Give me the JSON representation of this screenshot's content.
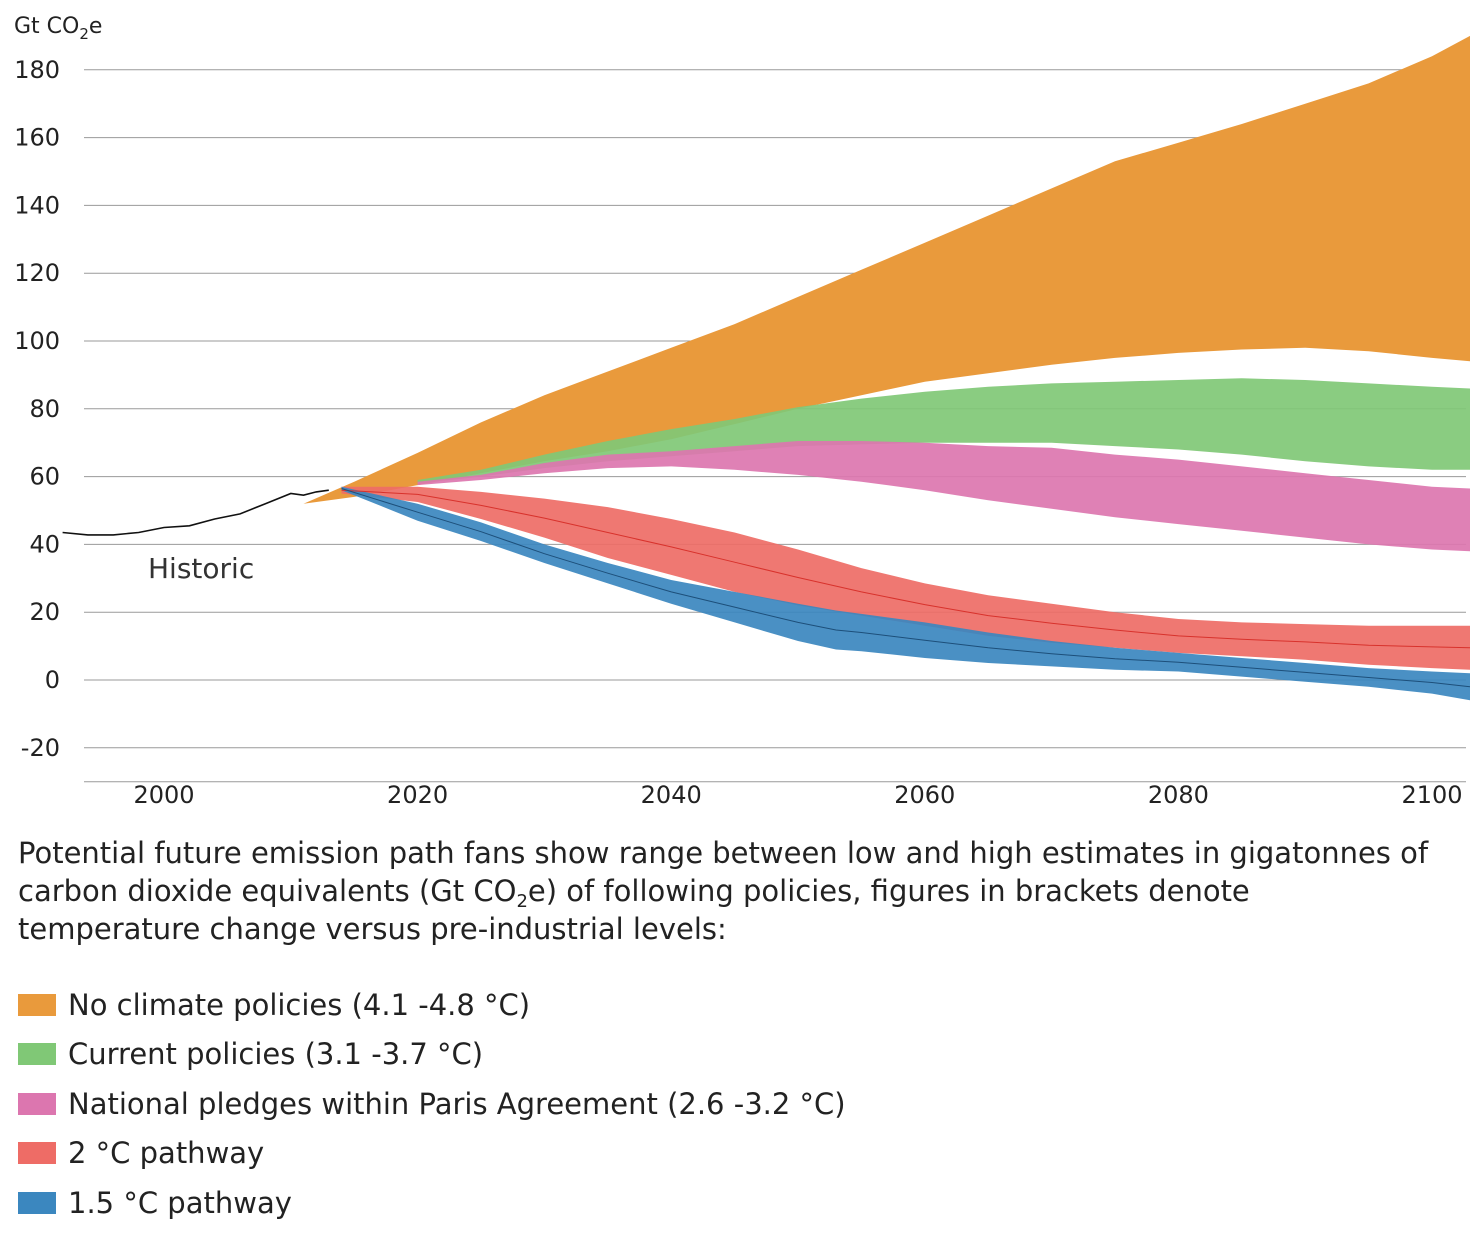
{
  "chart_data": {
    "type": "area",
    "title": "",
    "unit_label": {
      "pre": "Gt CO",
      "sub": "2",
      "post": "e"
    },
    "xlim": [
      1992,
      2103
    ],
    "ylim": [
      -20,
      190
    ],
    "x_ticks": [
      2000,
      2020,
      2040,
      2060,
      2080,
      2100
    ],
    "y_ticks": [
      -20,
      0,
      20,
      40,
      60,
      80,
      100,
      120,
      140,
      160,
      180
    ],
    "grid": true,
    "annotation": "Historic",
    "historic": {
      "name": "Historic",
      "x": [
        1992,
        1994,
        1996,
        1998,
        2000,
        2002,
        2004,
        2006,
        2008,
        2010,
        2011,
        2012,
        2013
      ],
      "y": [
        43.5,
        42.8,
        42.8,
        43.5,
        45,
        45.5,
        47.5,
        49,
        52,
        55,
        54.5,
        55.5,
        56
      ]
    },
    "series": [
      {
        "name": "No climate policies (4.1 -4.8 °C)",
        "color": "#E99A3C",
        "x": [
          2011,
          2015,
          2020,
          2025,
          2030,
          2035,
          2040,
          2045,
          2050,
          2055,
          2060,
          2065,
          2070,
          2075,
          2080,
          2085,
          2090,
          2095,
          2100,
          2103
        ],
        "high": [
          52,
          58.5,
          67,
          76,
          84,
          91,
          98,
          105,
          113,
          121,
          129,
          137,
          145,
          153,
          158.5,
          164,
          170,
          176,
          184,
          190
        ],
        "low": [
          52,
          54,
          57.5,
          61,
          64.5,
          67.5,
          71,
          75.5,
          80,
          84,
          88,
          90.5,
          93,
          95,
          96.5,
          97.5,
          98,
          97,
          95,
          94
        ]
      },
      {
        "name": "Current policies (3.1 -3.7 °C)",
        "color": "#80C876",
        "x": [
          2020,
          2025,
          2030,
          2035,
          2040,
          2045,
          2050,
          2055,
          2060,
          2065,
          2070,
          2075,
          2080,
          2085,
          2090,
          2095,
          2100,
          2103
        ],
        "high": [
          59,
          62,
          66.5,
          70.5,
          74,
          77,
          80.5,
          83,
          85,
          86.5,
          87.5,
          88,
          88.5,
          89,
          88.5,
          87.5,
          86.5,
          86
        ],
        "low": [
          58,
          60,
          62.5,
          64.5,
          66,
          67.5,
          69,
          69.5,
          70,
          70,
          70,
          69,
          68,
          66.5,
          64.5,
          63,
          62,
          62
        ]
      },
      {
        "name": "National pledges within Paris Agreement (2.6 -3.2 °C)",
        "color": "#DC76AF",
        "x": [
          2020,
          2025,
          2030,
          2035,
          2040,
          2045,
          2050,
          2055,
          2060,
          2065,
          2070,
          2075,
          2080,
          2085,
          2090,
          2095,
          2100,
          2103
        ],
        "high": [
          58.5,
          60.5,
          64,
          66.5,
          67.5,
          69,
          70.5,
          70.5,
          70,
          69,
          68.5,
          66.5,
          65,
          63,
          61,
          59,
          57,
          56.5
        ],
        "low": [
          57.5,
          59,
          61,
          62.5,
          63,
          62,
          60.5,
          58.5,
          56,
          53,
          50.5,
          48,
          46,
          44,
          42,
          40,
          38.5,
          38
        ]
      },
      {
        "name": "2 °C pathway",
        "color": "#EE6C66",
        "x": [
          2014,
          2020,
          2025,
          2030,
          2035,
          2040,
          2045,
          2050,
          2055,
          2060,
          2065,
          2070,
          2075,
          2080,
          2085,
          2090,
          2095,
          2100,
          2103
        ],
        "high": [
          57,
          57,
          55.5,
          53.5,
          51,
          47.5,
          43.5,
          38.5,
          33,
          28.5,
          25,
          22.5,
          20,
          18,
          17,
          16.5,
          16,
          16,
          16
        ],
        "low": [
          55,
          52.5,
          47.5,
          42,
          36,
          31,
          26,
          22,
          19,
          16,
          13,
          11,
          9.5,
          8,
          7,
          6,
          4.5,
          3.5,
          3
        ]
      },
      {
        "name": "1.5 °C pathway",
        "color": "#3B87BF",
        "x": [
          2014,
          2020,
          2025,
          2030,
          2035,
          2040,
          2045,
          2050,
          2053,
          2055,
          2060,
          2065,
          2070,
          2075,
          2080,
          2085,
          2090,
          2095,
          2100,
          2103
        ],
        "high": [
          57,
          52,
          46.5,
          40,
          34.5,
          29.5,
          26,
          22.5,
          20.5,
          19.5,
          17,
          14,
          11.5,
          9.5,
          8,
          6.5,
          5,
          3.5,
          2.5,
          2
        ],
        "low": [
          56,
          47,
          41,
          34.5,
          28.5,
          22.5,
          17,
          11.5,
          9,
          8.5,
          6.5,
          5,
          4,
          3,
          2.5,
          1,
          -0.5,
          -2,
          -4,
          -6
        ]
      }
    ]
  },
  "caption": {
    "part1": "Potential future emission path  fans show range between  low and high estimates in gigatonnes of carbon dioxide equivalents (Gt CO",
    "sub": "2",
    "part2": "e) of following policies, figures in brackets denote temperature change versus pre-industrial levels:"
  },
  "legend": [
    {
      "label": "No climate policies (4.1 -4.8 °C)",
      "color": "#E99A3C"
    },
    {
      "label": "Current policies (3.1 -3.7 °C)",
      "color": "#80C876"
    },
    {
      "label": "National pledges within Paris Agreement (2.6 -3.2 °C)",
      "color": "#DC76AF"
    },
    {
      "label": "2 °C pathway",
      "color": "#EE6C66"
    },
    {
      "label": "1.5 °C pathway",
      "color": "#3B87BF"
    }
  ]
}
